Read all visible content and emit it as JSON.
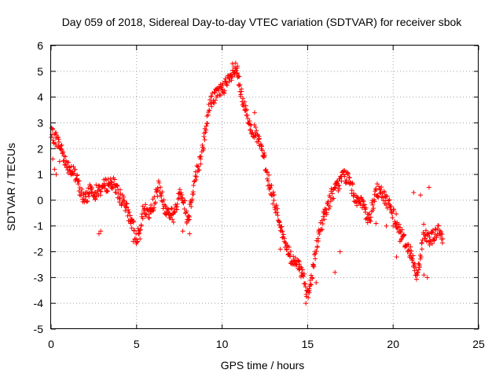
{
  "chart_data": {
    "type": "scatter",
    "title": "Day 059 of 2018, Sidereal Day-to-day VTEC variation (SDTVAR) for receiver sbok",
    "xlabel": "GPS time / hours",
    "ylabel": "SDTVAR / TECUs",
    "xlim": [
      0,
      25
    ],
    "ylim": [
      -5,
      6
    ],
    "xticks": [
      "0",
      "5",
      "10",
      "15",
      "20",
      "25"
    ],
    "yticks": [
      "-5",
      "-4",
      "-3",
      "-2",
      "-1",
      "0",
      "1",
      "2",
      "3",
      "4",
      "5",
      "6"
    ],
    "grid": true,
    "marker": "+",
    "marker_color": "#ff0000",
    "series": [
      {
        "name": "sbok",
        "anchors": [
          [
            0.0,
            2.55
          ],
          [
            0.3,
            2.4
          ],
          [
            0.6,
            2.0
          ],
          [
            0.9,
            1.4
          ],
          [
            1.2,
            1.2
          ],
          [
            1.5,
            0.8
          ],
          [
            1.8,
            0.2
          ],
          [
            2.0,
            0.0
          ],
          [
            2.3,
            0.5
          ],
          [
            2.6,
            0.3
          ],
          [
            3.0,
            0.5
          ],
          [
            3.5,
            0.7
          ],
          [
            3.8,
            0.5
          ],
          [
            4.2,
            -0.1
          ],
          [
            4.6,
            -0.6
          ],
          [
            5.0,
            -1.5
          ],
          [
            5.4,
            -0.4
          ],
          [
            5.8,
            -0.5
          ],
          [
            6.3,
            0.5
          ],
          [
            6.7,
            -0.4
          ],
          [
            7.2,
            -0.6
          ],
          [
            7.6,
            0.4
          ],
          [
            8.0,
            -0.8
          ],
          [
            8.4,
            0.8
          ],
          [
            8.8,
            1.8
          ],
          [
            9.3,
            3.8
          ],
          [
            9.8,
            4.2
          ],
          [
            10.4,
            4.6
          ],
          [
            10.8,
            5.1
          ],
          [
            11.2,
            3.8
          ],
          [
            11.6,
            3.0
          ],
          [
            12.0,
            2.5
          ],
          [
            12.4,
            1.8
          ],
          [
            12.8,
            0.5
          ],
          [
            13.2,
            -0.4
          ],
          [
            13.6,
            -1.5
          ],
          [
            14.0,
            -2.2
          ],
          [
            14.4,
            -2.5
          ],
          [
            14.8,
            -3.0
          ],
          [
            15.0,
            -3.8
          ],
          [
            15.3,
            -2.8
          ],
          [
            15.6,
            -1.5
          ],
          [
            16.0,
            -0.5
          ],
          [
            16.4,
            0.2
          ],
          [
            16.8,
            0.6
          ],
          [
            17.1,
            1.0
          ],
          [
            17.4,
            0.8
          ],
          [
            17.8,
            0.1
          ],
          [
            18.2,
            -0.2
          ],
          [
            18.6,
            -0.8
          ],
          [
            19.0,
            0.4
          ],
          [
            19.4,
            0.2
          ],
          [
            19.8,
            -0.2
          ],
          [
            20.2,
            -0.8
          ],
          [
            20.6,
            -1.5
          ],
          [
            21.0,
            -2.0
          ],
          [
            21.4,
            -3.0
          ],
          [
            21.8,
            -1.2
          ],
          [
            22.2,
            -1.5
          ],
          [
            22.6,
            -1.2
          ],
          [
            22.9,
            -1.5
          ]
        ],
        "extra_points": [
          [
            0.1,
            1.6
          ],
          [
            0.2,
            1.2
          ],
          [
            0.3,
            1.0
          ],
          [
            0.5,
            1.5
          ],
          [
            2.8,
            -1.3
          ],
          [
            2.9,
            -1.2
          ],
          [
            4.8,
            -1.6
          ],
          [
            5.2,
            -1.5
          ],
          [
            7.7,
            -1.2
          ],
          [
            8.1,
            -1.3
          ],
          [
            10.6,
            5.3
          ],
          [
            10.9,
            5.2
          ],
          [
            11.0,
            4.8
          ],
          [
            11.9,
            3.4
          ],
          [
            13.4,
            -1.9
          ],
          [
            14.5,
            -2.7
          ],
          [
            14.9,
            -4.0
          ],
          [
            15.1,
            -3.5
          ],
          [
            15.5,
            -3.2
          ],
          [
            16.6,
            -2.8
          ],
          [
            16.9,
            -2.0
          ],
          [
            19.0,
            -0.9
          ],
          [
            19.6,
            -1.0
          ],
          [
            20.0,
            -1.0
          ],
          [
            20.2,
            -2.2
          ],
          [
            20.4,
            -1.6
          ],
          [
            21.5,
            -2.7
          ],
          [
            21.8,
            -2.9
          ],
          [
            22.0,
            -3.0
          ],
          [
            22.1,
            0.5
          ],
          [
            21.6,
            0.2
          ],
          [
            21.2,
            0.3
          ]
        ]
      }
    ]
  }
}
